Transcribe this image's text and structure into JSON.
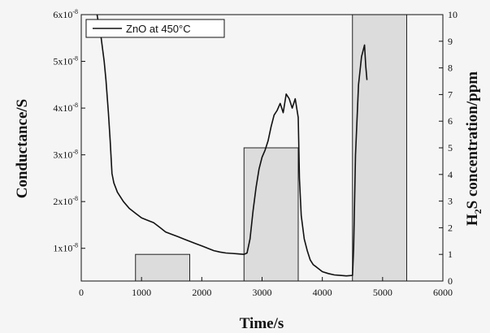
{
  "chart_data": {
    "type": "line",
    "xlabel": "Time/s",
    "ylabel_left": "Conductance/S",
    "ylabel_right": "H2S concentration/ppm",
    "ylabel_right_parts": [
      "H",
      "2",
      "S concentration/ppm"
    ],
    "xlim": [
      0,
      6000
    ],
    "ylim_left": [
      3e-09,
      6e-08
    ],
    "ylim_right": [
      0,
      10
    ],
    "x_ticks": [
      0,
      1000,
      2000,
      3000,
      4000,
      5000,
      6000
    ],
    "y_left_ticks": [
      {
        "value": 1e-08,
        "mantissa": "1x10",
        "exp": "-8"
      },
      {
        "value": 2e-08,
        "mantissa": "2x10",
        "exp": "-8"
      },
      {
        "value": 3e-08,
        "mantissa": "3x10",
        "exp": "-8"
      },
      {
        "value": 4e-08,
        "mantissa": "4x10",
        "exp": "-8"
      },
      {
        "value": 5e-08,
        "mantissa": "5x10",
        "exp": "-8"
      },
      {
        "value": 6e-08,
        "mantissa": "6x10",
        "exp": "-8"
      }
    ],
    "y_right_ticks": [
      0,
      1,
      2,
      3,
      4,
      5,
      6,
      7,
      8,
      9,
      10
    ],
    "legend": {
      "placement": "top-left",
      "label": "ZnO at 450°C"
    },
    "series": [
      {
        "name": "ZnO at 450°C",
        "axis": "left",
        "x": [
          250,
          300,
          330,
          380,
          410,
          450,
          480,
          510,
          540,
          570,
          600,
          700,
          800,
          900,
          1000,
          1100,
          1200,
          1300,
          1400,
          1500,
          1600,
          1700,
          1800,
          1900,
          2000,
          2100,
          2200,
          2300,
          2400,
          2500,
          2600,
          2700,
          2750,
          2800,
          2850,
          2900,
          2950,
          3000,
          3050,
          3100,
          3150,
          3200,
          3250,
          3300,
          3350,
          3400,
          3450,
          3500,
          3550,
          3600,
          3620,
          3650,
          3700,
          3750,
          3800,
          3850,
          3900,
          3950,
          4000,
          4100,
          4200,
          4300,
          4400,
          4500,
          4520,
          4550,
          4600,
          4650,
          4700,
          4720,
          4740
        ],
        "values": [
          6.1e-08,
          5.7e-08,
          5.5e-08,
          5e-08,
          4.6e-08,
          3.9e-08,
          3.3e-08,
          2.6e-08,
          2.4e-08,
          2.3e-08,
          2.2e-08,
          2e-08,
          1.85e-08,
          1.75e-08,
          1.65e-08,
          1.6e-08,
          1.55e-08,
          1.45e-08,
          1.35e-08,
          1.3e-08,
          1.25e-08,
          1.2e-08,
          1.15e-08,
          1.1e-08,
          1.05e-08,
          1e-08,
          9.5e-09,
          9.2e-09,
          9e-09,
          8.9e-09,
          8.8e-09,
          8.7e-09,
          9e-09,
          1.2e-08,
          1.8e-08,
          2.3e-08,
          2.7e-08,
          2.95e-08,
          3.1e-08,
          3.3e-08,
          3.6e-08,
          3.85e-08,
          3.95e-08,
          4.1e-08,
          3.9e-08,
          4.3e-08,
          4.2e-08,
          4e-08,
          4.2e-08,
          3.8e-08,
          2.5e-08,
          1.7e-08,
          1.2e-08,
          9.5e-09,
          7.5e-09,
          6.5e-09,
          6e-09,
          5.5e-09,
          5e-09,
          4.6e-09,
          4.3e-09,
          4.2e-09,
          4.1e-09,
          4.2e-09,
          1e-08,
          3e-08,
          4.5e-08,
          5.1e-08,
          5.35e-08,
          4.9e-08,
          4.6e-08
        ]
      },
      {
        "name": "H2S concentration",
        "axis": "right",
        "type": "step-area",
        "pulses": [
          {
            "x_start": 900,
            "x_end": 1800,
            "ppm": 1
          },
          {
            "x_start": 2700,
            "x_end": 3600,
            "ppm": 5
          },
          {
            "x_start": 4500,
            "x_end": 5400,
            "ppm": 10
          }
        ]
      }
    ]
  }
}
